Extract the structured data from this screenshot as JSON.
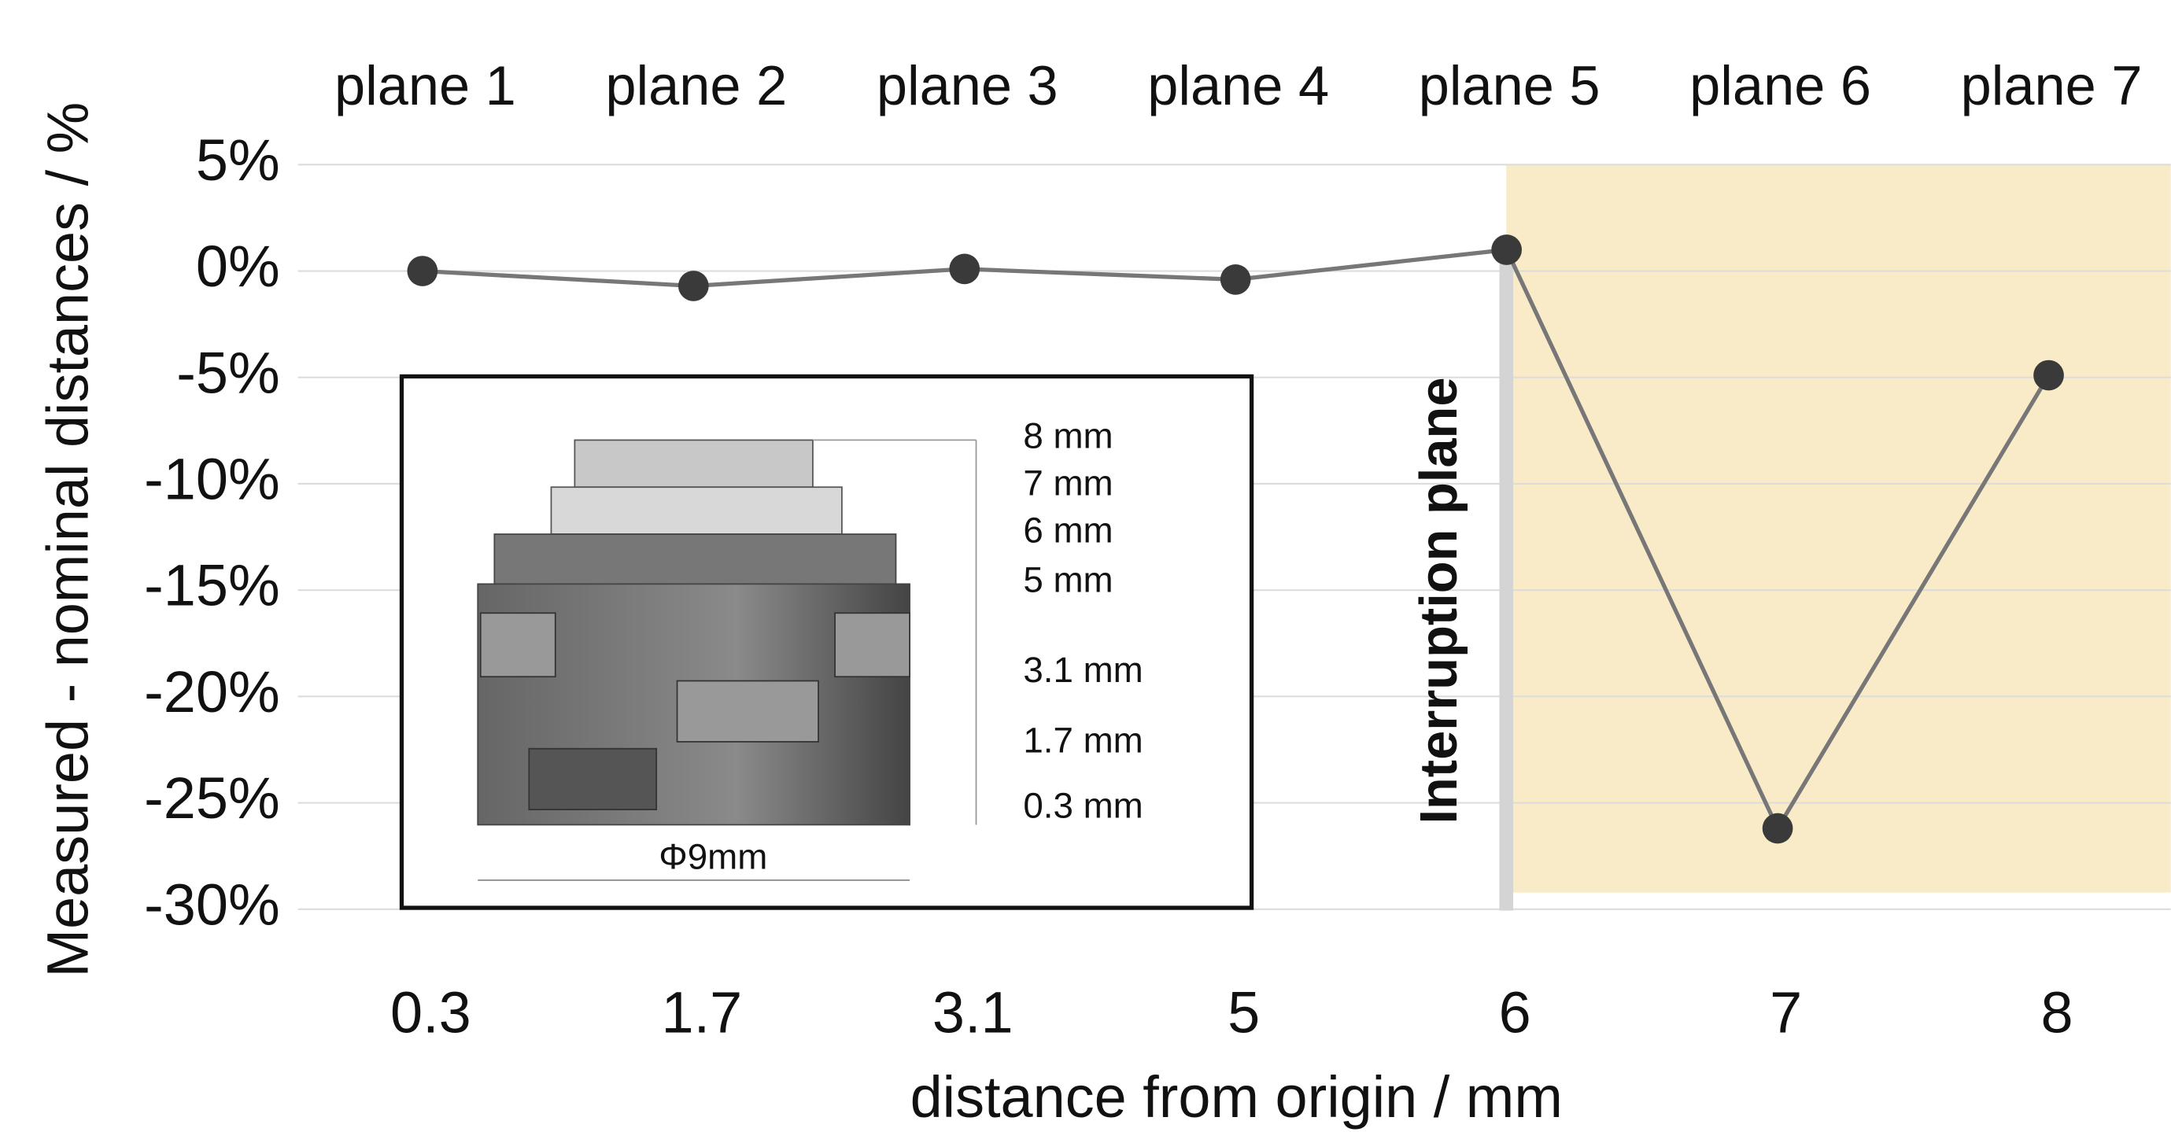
{
  "chart_data": {
    "type": "line",
    "y_label": "Measured - nominal distances / %",
    "x_label": "distance from origin / mm",
    "categories": [
      "0.3",
      "1.7",
      "3.1",
      "5",
      "6",
      "7",
      "8"
    ],
    "plane_labels": [
      "plane 1",
      "plane 2",
      "plane 3",
      "plane 4",
      "plane 5",
      "plane 6",
      "plane 7"
    ],
    "values": [
      0.0,
      -0.7,
      0.1,
      -0.4,
      1.0,
      -26.2,
      -4.9
    ],
    "color": "#3a3a3a",
    "line_color": "#777777",
    "ylim": [
      5,
      -30
    ],
    "yticks": [
      {
        "value": 5,
        "label": "5%"
      },
      {
        "value": 0,
        "label": "0%"
      },
      {
        "value": -5,
        "label": "-5%"
      },
      {
        "value": -10,
        "label": "-10%"
      },
      {
        "value": -15,
        "label": "-15%"
      },
      {
        "value": -20,
        "label": "-20%"
      },
      {
        "value": -25,
        "label": "-25%"
      },
      {
        "value": -30,
        "label": "-30%"
      }
    ],
    "grid": true,
    "annotation": "Interruption plane",
    "inset_labels": [
      "8 mm",
      "7 mm",
      "6 mm",
      "5 mm",
      "3.1 mm",
      "1.7 mm",
      "0.3 mm"
    ],
    "inset_diameter": "Φ9mm"
  }
}
